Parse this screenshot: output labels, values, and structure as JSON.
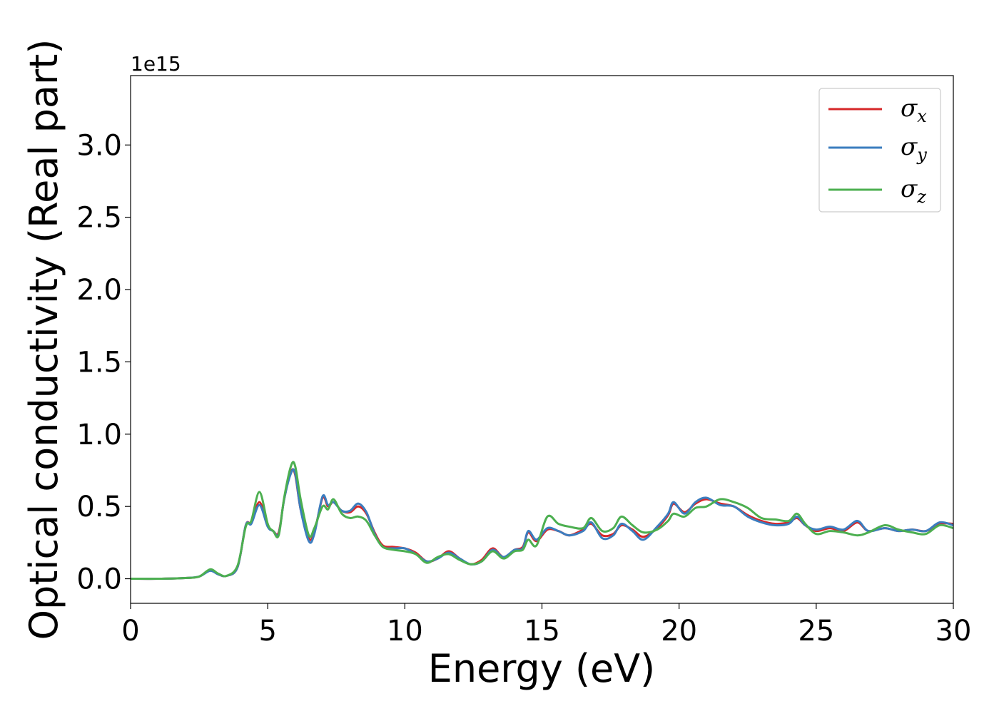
{
  "chart_data": {
    "type": "line",
    "xlabel": "Energy (eV)",
    "ylabel": "Optical conductivity (Real part)",
    "y_offset_label": "1e15",
    "xlim": [
      0,
      30
    ],
    "ylim": [
      -0.17,
      3.48
    ],
    "x_ticks": [
      {
        "value": 0,
        "label": "0"
      },
      {
        "value": 5,
        "label": "5"
      },
      {
        "value": 10,
        "label": "10"
      },
      {
        "value": 15,
        "label": "15"
      },
      {
        "value": 20,
        "label": "20"
      },
      {
        "value": 25,
        "label": "25"
      },
      {
        "value": 30,
        "label": "30"
      }
    ],
    "y_ticks": [
      {
        "value": 0.0,
        "label": "0.0"
      },
      {
        "value": 0.5,
        "label": "0.5"
      },
      {
        "value": 1.0,
        "label": "1.0"
      },
      {
        "value": 1.5,
        "label": "1.5"
      },
      {
        "value": 2.0,
        "label": "2.0"
      },
      {
        "value": 2.5,
        "label": "2.5"
      },
      {
        "value": 3.0,
        "label": "3.0"
      }
    ],
    "grid": false,
    "legend_position": "top-right",
    "series": [
      {
        "name": "σx",
        "symbol": "σ",
        "subscript": "x",
        "color": "#d62728",
        "points": [
          [
            0,
            0
          ],
          [
            1,
            0
          ],
          [
            2,
            0.005
          ],
          [
            2.5,
            0.015
          ],
          [
            2.9,
            0.06
          ],
          [
            3.2,
            0.03
          ],
          [
            3.5,
            0.02
          ],
          [
            3.9,
            0.08
          ],
          [
            4.2,
            0.37
          ],
          [
            4.4,
            0.39
          ],
          [
            4.7,
            0.53
          ],
          [
            5.0,
            0.37
          ],
          [
            5.2,
            0.33
          ],
          [
            5.4,
            0.32
          ],
          [
            5.6,
            0.55
          ],
          [
            5.85,
            0.74
          ],
          [
            6.0,
            0.72
          ],
          [
            6.2,
            0.48
          ],
          [
            6.5,
            0.28
          ],
          [
            6.7,
            0.32
          ],
          [
            7.0,
            0.56
          ],
          [
            7.2,
            0.5
          ],
          [
            7.4,
            0.53
          ],
          [
            7.7,
            0.47
          ],
          [
            8.0,
            0.46
          ],
          [
            8.3,
            0.5
          ],
          [
            8.6,
            0.45
          ],
          [
            8.9,
            0.32
          ],
          [
            9.2,
            0.23
          ],
          [
            9.6,
            0.22
          ],
          [
            10.0,
            0.21
          ],
          [
            10.4,
            0.18
          ],
          [
            10.8,
            0.12
          ],
          [
            11.2,
            0.14
          ],
          [
            11.6,
            0.19
          ],
          [
            12.0,
            0.14
          ],
          [
            12.4,
            0.1
          ],
          [
            12.8,
            0.13
          ],
          [
            13.2,
            0.21
          ],
          [
            13.6,
            0.15
          ],
          [
            14.0,
            0.2
          ],
          [
            14.3,
            0.22
          ],
          [
            14.5,
            0.32
          ],
          [
            14.8,
            0.26
          ],
          [
            15.2,
            0.34
          ],
          [
            15.6,
            0.33
          ],
          [
            16.0,
            0.3
          ],
          [
            16.5,
            0.34
          ],
          [
            16.8,
            0.38
          ],
          [
            17.2,
            0.3
          ],
          [
            17.6,
            0.31
          ],
          [
            17.9,
            0.37
          ],
          [
            18.3,
            0.34
          ],
          [
            18.7,
            0.29
          ],
          [
            19.2,
            0.35
          ],
          [
            19.6,
            0.44
          ],
          [
            19.8,
            0.52
          ],
          [
            20.2,
            0.46
          ],
          [
            20.6,
            0.52
          ],
          [
            21.0,
            0.55
          ],
          [
            21.5,
            0.52
          ],
          [
            22.0,
            0.5
          ],
          [
            22.5,
            0.44
          ],
          [
            23.0,
            0.4
          ],
          [
            23.5,
            0.38
          ],
          [
            24.0,
            0.39
          ],
          [
            24.3,
            0.42
          ],
          [
            24.6,
            0.37
          ],
          [
            25.0,
            0.33
          ],
          [
            25.5,
            0.35
          ],
          [
            26.0,
            0.33
          ],
          [
            26.5,
            0.39
          ],
          [
            26.9,
            0.33
          ],
          [
            27.5,
            0.35
          ],
          [
            28.0,
            0.33
          ],
          [
            28.5,
            0.34
          ],
          [
            29.0,
            0.33
          ],
          [
            29.5,
            0.38
          ],
          [
            30.0,
            0.38
          ]
        ]
      },
      {
        "name": "σy",
        "symbol": "σ",
        "subscript": "y",
        "color": "#3b7dbf",
        "points": [
          [
            0,
            0
          ],
          [
            1,
            0
          ],
          [
            2,
            0.005
          ],
          [
            2.5,
            0.015
          ],
          [
            2.9,
            0.055
          ],
          [
            3.2,
            0.03
          ],
          [
            3.5,
            0.02
          ],
          [
            3.9,
            0.08
          ],
          [
            4.2,
            0.37
          ],
          [
            4.4,
            0.38
          ],
          [
            4.7,
            0.51
          ],
          [
            5.0,
            0.36
          ],
          [
            5.2,
            0.33
          ],
          [
            5.4,
            0.31
          ],
          [
            5.6,
            0.55
          ],
          [
            5.85,
            0.73
          ],
          [
            6.0,
            0.73
          ],
          [
            6.2,
            0.48
          ],
          [
            6.5,
            0.26
          ],
          [
            6.7,
            0.31
          ],
          [
            7.0,
            0.57
          ],
          [
            7.2,
            0.51
          ],
          [
            7.4,
            0.53
          ],
          [
            7.7,
            0.47
          ],
          [
            8.0,
            0.47
          ],
          [
            8.3,
            0.52
          ],
          [
            8.6,
            0.46
          ],
          [
            8.9,
            0.31
          ],
          [
            9.2,
            0.22
          ],
          [
            9.6,
            0.21
          ],
          [
            10.0,
            0.21
          ],
          [
            10.4,
            0.17
          ],
          [
            10.8,
            0.12
          ],
          [
            11.2,
            0.14
          ],
          [
            11.6,
            0.18
          ],
          [
            12.0,
            0.14
          ],
          [
            12.4,
            0.1
          ],
          [
            12.8,
            0.12
          ],
          [
            13.2,
            0.2
          ],
          [
            13.6,
            0.15
          ],
          [
            14.0,
            0.2
          ],
          [
            14.3,
            0.21
          ],
          [
            14.5,
            0.33
          ],
          [
            14.8,
            0.27
          ],
          [
            15.2,
            0.35
          ],
          [
            15.6,
            0.33
          ],
          [
            16.0,
            0.3
          ],
          [
            16.5,
            0.33
          ],
          [
            16.8,
            0.39
          ],
          [
            17.2,
            0.28
          ],
          [
            17.6,
            0.3
          ],
          [
            17.9,
            0.38
          ],
          [
            18.3,
            0.33
          ],
          [
            18.7,
            0.27
          ],
          [
            19.2,
            0.36
          ],
          [
            19.6,
            0.45
          ],
          [
            19.8,
            0.53
          ],
          [
            20.2,
            0.45
          ],
          [
            20.6,
            0.53
          ],
          [
            21.0,
            0.56
          ],
          [
            21.5,
            0.51
          ],
          [
            22.0,
            0.5
          ],
          [
            22.5,
            0.43
          ],
          [
            23.0,
            0.39
          ],
          [
            23.5,
            0.37
          ],
          [
            24.0,
            0.38
          ],
          [
            24.3,
            0.43
          ],
          [
            24.6,
            0.37
          ],
          [
            25.0,
            0.34
          ],
          [
            25.5,
            0.36
          ],
          [
            26.0,
            0.34
          ],
          [
            26.5,
            0.4
          ],
          [
            26.9,
            0.33
          ],
          [
            27.5,
            0.35
          ],
          [
            28.0,
            0.33
          ],
          [
            28.5,
            0.34
          ],
          [
            29.0,
            0.33
          ],
          [
            29.5,
            0.39
          ],
          [
            30.0,
            0.37
          ]
        ]
      },
      {
        "name": "σz",
        "symbol": "σ",
        "subscript": "z",
        "color": "#4caf50",
        "points": [
          [
            0,
            0
          ],
          [
            1,
            0
          ],
          [
            2,
            0.005
          ],
          [
            2.5,
            0.015
          ],
          [
            2.9,
            0.065
          ],
          [
            3.2,
            0.035
          ],
          [
            3.5,
            0.02
          ],
          [
            3.9,
            0.09
          ],
          [
            4.2,
            0.36
          ],
          [
            4.4,
            0.4
          ],
          [
            4.7,
            0.6
          ],
          [
            5.0,
            0.38
          ],
          [
            5.2,
            0.33
          ],
          [
            5.4,
            0.3
          ],
          [
            5.6,
            0.56
          ],
          [
            5.85,
            0.78
          ],
          [
            6.0,
            0.78
          ],
          [
            6.2,
            0.55
          ],
          [
            6.5,
            0.3
          ],
          [
            6.7,
            0.35
          ],
          [
            7.0,
            0.5
          ],
          [
            7.2,
            0.48
          ],
          [
            7.4,
            0.55
          ],
          [
            7.7,
            0.45
          ],
          [
            8.0,
            0.42
          ],
          [
            8.3,
            0.43
          ],
          [
            8.6,
            0.4
          ],
          [
            8.9,
            0.3
          ],
          [
            9.2,
            0.22
          ],
          [
            9.6,
            0.2
          ],
          [
            10.0,
            0.19
          ],
          [
            10.4,
            0.17
          ],
          [
            10.8,
            0.11
          ],
          [
            11.2,
            0.15
          ],
          [
            11.6,
            0.17
          ],
          [
            12.0,
            0.13
          ],
          [
            12.4,
            0.1
          ],
          [
            12.8,
            0.12
          ],
          [
            13.2,
            0.19
          ],
          [
            13.6,
            0.14
          ],
          [
            14.0,
            0.19
          ],
          [
            14.3,
            0.2
          ],
          [
            14.5,
            0.27
          ],
          [
            14.8,
            0.23
          ],
          [
            15.2,
            0.43
          ],
          [
            15.6,
            0.38
          ],
          [
            16.0,
            0.36
          ],
          [
            16.5,
            0.35
          ],
          [
            16.8,
            0.42
          ],
          [
            17.2,
            0.33
          ],
          [
            17.6,
            0.35
          ],
          [
            17.9,
            0.43
          ],
          [
            18.3,
            0.37
          ],
          [
            18.7,
            0.32
          ],
          [
            19.2,
            0.34
          ],
          [
            19.6,
            0.4
          ],
          [
            19.8,
            0.45
          ],
          [
            20.2,
            0.43
          ],
          [
            20.6,
            0.49
          ],
          [
            21.0,
            0.5
          ],
          [
            21.5,
            0.55
          ],
          [
            22.0,
            0.53
          ],
          [
            22.5,
            0.49
          ],
          [
            23.0,
            0.42
          ],
          [
            23.5,
            0.41
          ],
          [
            24.0,
            0.4
          ],
          [
            24.3,
            0.45
          ],
          [
            24.6,
            0.38
          ],
          [
            25.0,
            0.31
          ],
          [
            25.5,
            0.33
          ],
          [
            26.0,
            0.32
          ],
          [
            26.5,
            0.3
          ],
          [
            26.9,
            0.32
          ],
          [
            27.5,
            0.37
          ],
          [
            28.0,
            0.34
          ],
          [
            28.5,
            0.32
          ],
          [
            29.0,
            0.31
          ],
          [
            29.5,
            0.37
          ],
          [
            30.0,
            0.35
          ]
        ]
      }
    ]
  }
}
